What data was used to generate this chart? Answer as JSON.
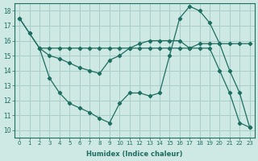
{
  "xlabel": "Humidex (Indice chaleur)",
  "xlim": [
    -0.5,
    23.5
  ],
  "ylim": [
    9.5,
    18.5
  ],
  "yticks": [
    10,
    11,
    12,
    13,
    14,
    15,
    16,
    17,
    18
  ],
  "xticks": [
    0,
    1,
    2,
    3,
    4,
    5,
    6,
    7,
    8,
    9,
    10,
    11,
    12,
    13,
    14,
    15,
    16,
    17,
    18,
    19,
    20,
    21,
    22,
    23
  ],
  "bg_color": "#cee8e3",
  "grid_color": "#a8cec9",
  "line_color": "#1e6e61",
  "series1_x": [
    0,
    1,
    2,
    3,
    4,
    5,
    6,
    7,
    8,
    9,
    10,
    11,
    12,
    13,
    14,
    15,
    16,
    17,
    18,
    19,
    20,
    21,
    22,
    23
  ],
  "series1_y": [
    17.5,
    16.5,
    15.5,
    15.5,
    15.5,
    15.5,
    15.5,
    15.5,
    15.5,
    15.5,
    15.5,
    15.5,
    15.5,
    15.5,
    15.5,
    15.5,
    15.5,
    15.5,
    15.8,
    15.8,
    15.8,
    15.8,
    15.8,
    15.8
  ],
  "series2_x": [
    0,
    1,
    2,
    3,
    4,
    5,
    6,
    7,
    8,
    9,
    10,
    11,
    12,
    13,
    14,
    15,
    16,
    17,
    18,
    19,
    20,
    21,
    22,
    23
  ],
  "series2_y": [
    17.5,
    16.5,
    15.5,
    15.0,
    14.8,
    14.5,
    14.2,
    14.0,
    13.8,
    14.7,
    15.0,
    15.5,
    15.8,
    16.0,
    16.0,
    16.0,
    16.0,
    15.5,
    15.5,
    15.5,
    14.0,
    12.5,
    10.5,
    10.2
  ],
  "series3_x": [
    2,
    3,
    4,
    5,
    6,
    7,
    8,
    9,
    10,
    11,
    12,
    13,
    14,
    15,
    16,
    17,
    18,
    19,
    20,
    21,
    22,
    23
  ],
  "series3_y": [
    15.5,
    13.5,
    12.5,
    11.8,
    11.5,
    11.2,
    10.8,
    10.5,
    11.8,
    12.5,
    12.5,
    12.3,
    12.5,
    15.0,
    17.5,
    18.3,
    18.0,
    17.2,
    15.8,
    14.0,
    12.5,
    10.2
  ]
}
